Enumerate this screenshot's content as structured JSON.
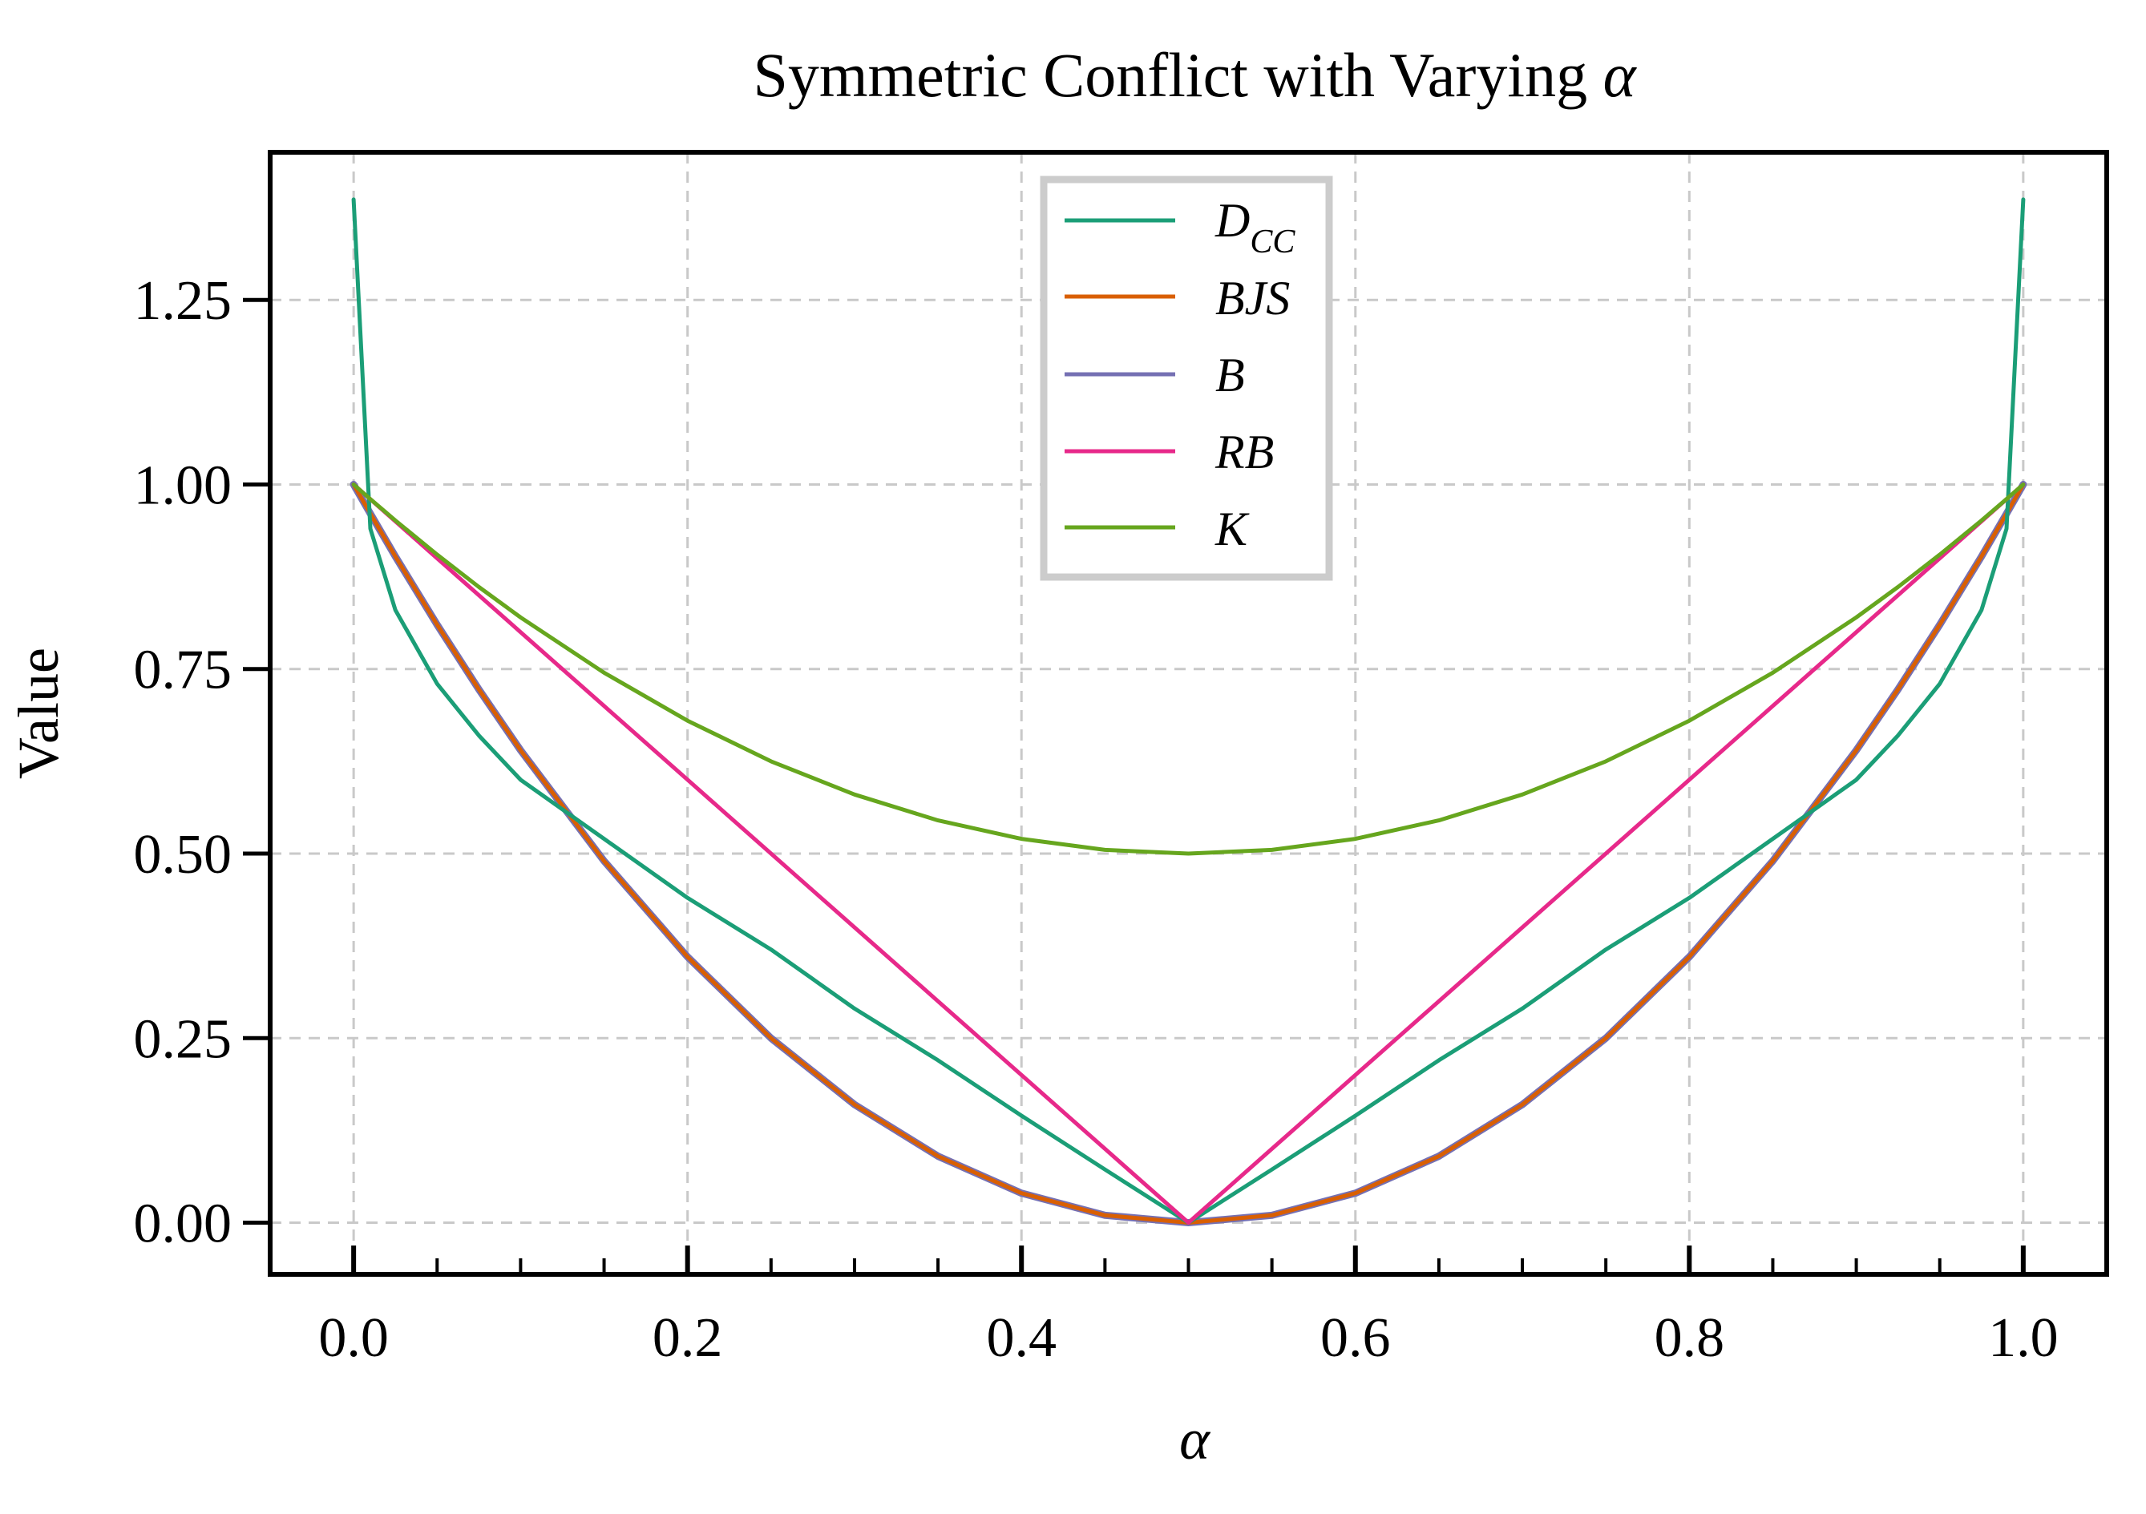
{
  "chart_data": {
    "type": "line",
    "title": "Symmetric Conflict with Varying",
    "title_symbol": "α",
    "xlabel": "α",
    "ylabel": "Value",
    "xlim": [
      -0.05,
      1.05
    ],
    "ylim": [
      -0.07,
      1.45
    ],
    "xticks": [
      "0.0",
      "0.2",
      "0.4",
      "0.6",
      "0.8",
      "1.0"
    ],
    "xtick_values": [
      0.0,
      0.2,
      0.4,
      0.6,
      0.8,
      1.0
    ],
    "yticks": [
      "0.00",
      "0.25",
      "0.50",
      "0.75",
      "1.00",
      "1.25"
    ],
    "ytick_values": [
      0.0,
      0.25,
      0.5,
      0.75,
      1.0,
      1.25
    ],
    "grid": true,
    "legend_position": "top-center",
    "x": [
      0.0,
      0.01,
      0.025,
      0.05,
      0.075,
      0.1,
      0.15,
      0.2,
      0.25,
      0.3,
      0.35,
      0.4,
      0.45,
      0.5,
      0.55,
      0.6,
      0.65,
      0.7,
      0.75,
      0.8,
      0.85,
      0.9,
      0.925,
      0.95,
      0.975,
      0.99,
      1.0
    ],
    "series": [
      {
        "name": "D",
        "name_sub": "CC",
        "color": "#1b9e77",
        "values": [
          1.386,
          0.94,
          0.83,
          0.73,
          0.66,
          0.6,
          0.52,
          0.44,
          0.37,
          0.29,
          0.22,
          0.145,
          0.072,
          0.0,
          0.072,
          0.145,
          0.22,
          0.29,
          0.37,
          0.44,
          0.52,
          0.6,
          0.66,
          0.73,
          0.83,
          0.94,
          1.386
        ]
      },
      {
        "name": "BJS",
        "color": "#d95f02",
        "values": [
          1.0,
          0.9604,
          0.9025,
          0.81,
          0.7225,
          0.64,
          0.49,
          0.36,
          0.25,
          0.16,
          0.09,
          0.04,
          0.01,
          0.0,
          0.01,
          0.04,
          0.09,
          0.16,
          0.25,
          0.36,
          0.49,
          0.64,
          0.7225,
          0.81,
          0.9025,
          0.9604,
          1.0
        ]
      },
      {
        "name": "B",
        "color": "#7570b3",
        "values": [
          1.0,
          0.9604,
          0.9025,
          0.81,
          0.7225,
          0.64,
          0.49,
          0.36,
          0.25,
          0.16,
          0.09,
          0.04,
          0.01,
          0.0,
          0.01,
          0.04,
          0.09,
          0.16,
          0.25,
          0.36,
          0.49,
          0.64,
          0.7225,
          0.81,
          0.9025,
          0.9604,
          1.0
        ]
      },
      {
        "name": "RB",
        "color": "#e7298a",
        "values": [
          1.0,
          0.98,
          0.95,
          0.9,
          0.85,
          0.8,
          0.7,
          0.6,
          0.5,
          0.4,
          0.3,
          0.2,
          0.1,
          0.0,
          0.1,
          0.2,
          0.3,
          0.4,
          0.5,
          0.6,
          0.7,
          0.8,
          0.85,
          0.9,
          0.95,
          0.98,
          1.0
        ]
      },
      {
        "name": "K",
        "color": "#66a61e",
        "values": [
          1.0,
          0.9802,
          0.95125,
          0.905,
          0.86125,
          0.82,
          0.745,
          0.68,
          0.625,
          0.58,
          0.545,
          0.52,
          0.505,
          0.5,
          0.505,
          0.52,
          0.545,
          0.58,
          0.625,
          0.68,
          0.745,
          0.82,
          0.86125,
          0.905,
          0.95125,
          0.9802,
          1.0
        ]
      }
    ]
  }
}
